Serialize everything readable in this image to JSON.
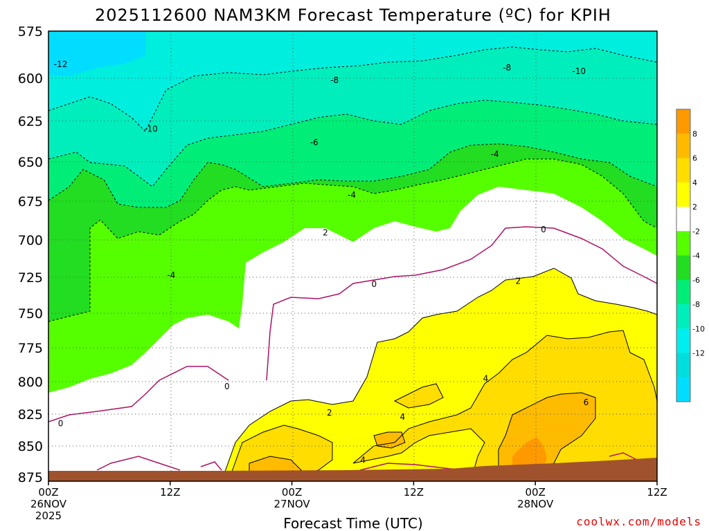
{
  "chart_data": {
    "type": "heatmap",
    "title": "2025112600 NAM3KM Forecast Temperature (ºC) for KPIH",
    "xlabel": "Forecast Time (UTC)",
    "ylabel": "",
    "y_axis": {
      "unit": "hPa",
      "range": [
        575,
        875
      ],
      "reversed": true,
      "ticks": [
        "575",
        "600",
        "625",
        "650",
        "675",
        "700",
        "725",
        "750",
        "775",
        "800",
        "825",
        "850",
        "875"
      ]
    },
    "x_axis": {
      "range_hours": [
        0,
        60
      ],
      "ticks": [
        {
          "hour": 0,
          "lines": [
            "00Z",
            "26NOV",
            "2025"
          ]
        },
        {
          "hour": 12,
          "lines": [
            "12Z"
          ]
        },
        {
          "hour": 24,
          "lines": [
            "00Z",
            "27NOV"
          ]
        },
        {
          "hour": 36,
          "lines": [
            "12Z"
          ]
        },
        {
          "hour": 48,
          "lines": [
            "00Z",
            "28NOV"
          ]
        },
        {
          "hour": 60,
          "lines": [
            "12Z"
          ]
        }
      ]
    },
    "grid": true,
    "legend": {
      "placement": "right",
      "levels": [
        "8",
        "6",
        "4",
        "2",
        "-2",
        "-4",
        "-6",
        "-8",
        "-10",
        "-12"
      ],
      "colors": [
        "#ff9900",
        "#ffbb00",
        "#ffdd00",
        "#ffff00",
        "#ffffff",
        "#55ff00",
        "#22dd22",
        "#00ee77",
        "#00eebb",
        "#00eeee",
        "#00dddd",
        "#00ddff"
      ]
    },
    "contour_labels": [
      {
        "text": "-12",
        "hour": 1.2,
        "p": 593
      },
      {
        "text": "-10",
        "hour": 10.1,
        "p": 630
      },
      {
        "text": "-8",
        "hour": 28.2,
        "p": 602
      },
      {
        "text": "-8",
        "hour": 45.2,
        "p": 595
      },
      {
        "text": "-10",
        "hour": 52.3,
        "p": 597
      },
      {
        "text": "-6",
        "hour": 26.2,
        "p": 638
      },
      {
        "text": "-4",
        "hour": 29.9,
        "p": 670
      },
      {
        "text": "-4",
        "hour": 44.0,
        "p": 645
      },
      {
        "text": "-4",
        "hour": 12.1,
        "p": 722
      },
      {
        "text": "2",
        "hour": 27.3,
        "p": 694
      },
      {
        "text": "0",
        "hour": 48.8,
        "p": 692
      },
      {
        "text": "0",
        "hour": 32.1,
        "p": 728
      },
      {
        "text": "2",
        "hour": 46.3,
        "p": 726
      },
      {
        "text": "0",
        "hour": 17.6,
        "p": 801
      },
      {
        "text": "0",
        "hour": 1.2,
        "p": 829
      },
      {
        "text": "2",
        "hour": 27.7,
        "p": 821
      },
      {
        "text": "4",
        "hour": 34.9,
        "p": 824
      },
      {
        "text": "4",
        "hour": 43.1,
        "p": 795
      },
      {
        "text": "6",
        "hour": 53.0,
        "p": 813
      },
      {
        "text": "4",
        "hour": 31.0,
        "p": 858
      }
    ],
    "terrain": {
      "surface_hpa_start": 871,
      "surface_hpa_end": 864,
      "color": "#a0522d"
    }
  },
  "footer": {
    "credit": "coolwx.com/models"
  }
}
